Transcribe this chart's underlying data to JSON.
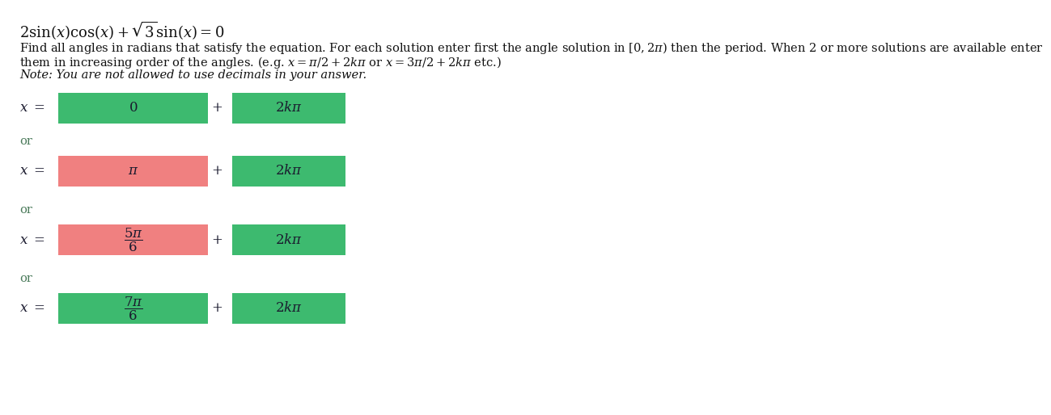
{
  "title": "2\\sin(x)\\cos(x) + \\sqrt{3}\\sin(x) = 0",
  "desc1": "Find all angles in radians that satisfy the equation. For each solution enter first the angle solution in $[0, 2\\pi)$ then the period. When 2 or more solutions are available enter",
  "desc2": "them in increasing order of the angles. (e.g. $x = \\pi/2 + 2k\\pi$ or $x = 3\\pi/2 + 2k\\pi$ etc.)",
  "desc3": "Note: You are not allowed to use decimals in your answer.",
  "angle_colors": [
    "#3dba6f",
    "#f08080",
    "#f08080",
    "#3dba6f"
  ],
  "period_color": "#3dba6f",
  "angle_labels": [
    "$0$",
    "$\\pi$",
    "$\\dfrac{5\\pi}{6}$",
    "$\\dfrac{7\\pi}{6}$"
  ],
  "period_label": "$2k\\pi$",
  "bg_color": "#ffffff",
  "text_dark": "#1a1a2e",
  "or_color": "#4a7a5a",
  "fig_width": 12.0,
  "fig_height": 4.94
}
